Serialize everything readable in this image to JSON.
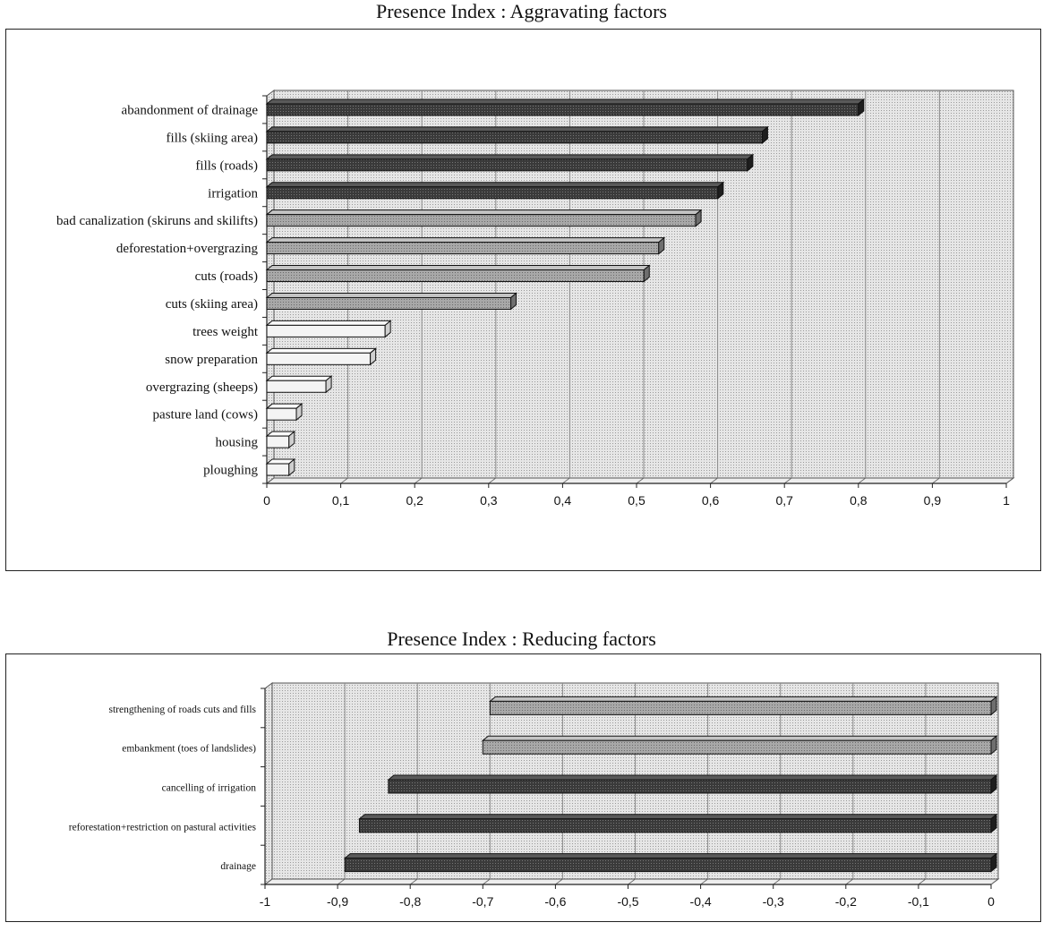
{
  "chart_data": [
    {
      "type": "bar",
      "orientation": "horizontal",
      "title": "Presence Index : Aggravating factors",
      "categories": [
        "abandonment of drainage",
        "fills (skiing area)",
        "fills (roads)",
        "irrigation",
        "bad canalization (skiruns and skilifts)",
        "deforestation+overgrazing",
        "cuts (roads)",
        "cuts (skiing area)",
        "trees weight",
        "snow preparation",
        "overgrazing (sheeps)",
        "pasture land (cows)",
        "housing",
        "ploughing"
      ],
      "values": [
        0.8,
        0.67,
        0.65,
        0.61,
        0.58,
        0.53,
        0.51,
        0.33,
        0.16,
        0.14,
        0.08,
        0.04,
        0.03,
        0.03
      ],
      "bar_shades": [
        "dark",
        "dark",
        "dark",
        "dark",
        "medium",
        "medium",
        "medium",
        "medium",
        "light",
        "light",
        "light",
        "light",
        "light",
        "light"
      ],
      "xlim": [
        0,
        1
      ],
      "ticks": [
        "0",
        "0,1",
        "0,2",
        "0,3",
        "0,4",
        "0,5",
        "0,6",
        "0,7",
        "0,8",
        "0,9",
        "1"
      ],
      "grid": true
    },
    {
      "type": "bar",
      "orientation": "horizontal",
      "title": "Presence Index : Reducing factors",
      "categories": [
        "strengthening of roads cuts and fills",
        "embankment (toes of landslides)",
        "cancelling of irrigation",
        "reforestation+restriction on pastural activities",
        "drainage"
      ],
      "values": [
        -0.69,
        -0.7,
        -0.83,
        -0.87,
        -0.89
      ],
      "bar_shades": [
        "medium",
        "medium",
        "dark",
        "dark",
        "dark"
      ],
      "xlim": [
        -1,
        0
      ],
      "ticks": [
        "-1",
        "-0,9",
        "-0,8",
        "-0,7",
        "-0,6",
        "-0,5",
        "-0,4",
        "-0,3",
        "-0,2",
        "-0,1",
        "0"
      ],
      "grid": true
    }
  ],
  "colors": {
    "dark": "#3c3c3c",
    "medium": "#9a9a9a",
    "light": "#f4f4f4",
    "plot_area": "#dcdcdc",
    "gridline": "#8a8a8a"
  }
}
